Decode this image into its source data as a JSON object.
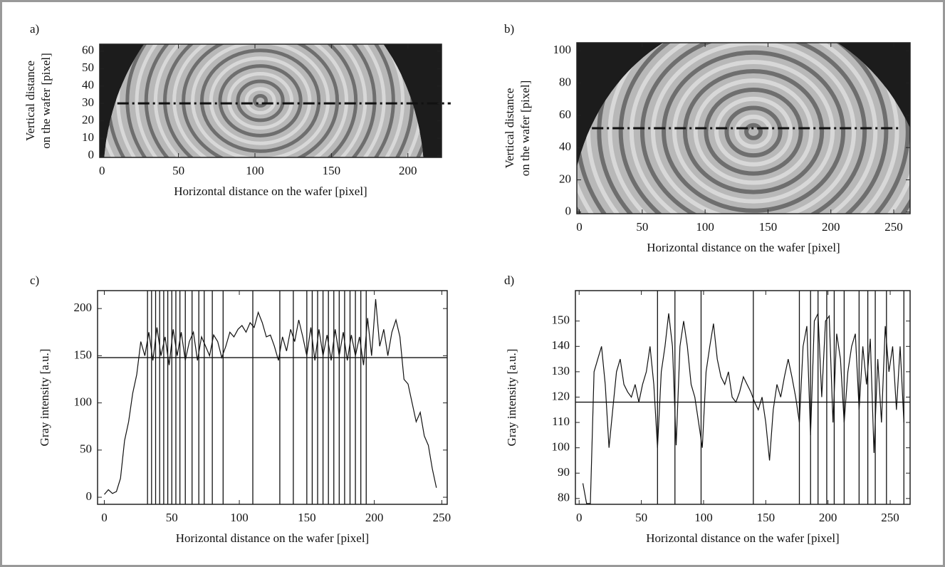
{
  "chart_data": [
    {
      "type": "image",
      "label": "a)",
      "xlabel": "Horizontal distance on the wafer [pixel]",
      "ylabel": [
        "Vertical distance",
        "on the wafer [pixel]"
      ],
      "xlim": [
        -1.5,
        222
      ],
      "ylim": [
        -1,
        64
      ],
      "xticks": [
        0,
        50,
        100,
        150,
        200
      ],
      "yticks": [
        0,
        10,
        20,
        30,
        40,
        50,
        60
      ],
      "profile_y": 30,
      "profile_x": [
        10,
        228
      ]
    },
    {
      "type": "image",
      "label": "b)",
      "xlabel": "Horizontal distance on the wafer [pixel]",
      "ylabel": [
        "Vertical distance",
        "on the wafer [pixel]"
      ],
      "xlim": [
        -2,
        263
      ],
      "ylim": [
        -1,
        105
      ],
      "xticks": [
        0,
        50,
        100,
        150,
        200,
        250
      ],
      "yticks": [
        0,
        20,
        40,
        60,
        80,
        100
      ],
      "profile_y": 52,
      "profile_x": [
        10,
        255
      ]
    },
    {
      "type": "line",
      "label": "c)",
      "xlabel": "Horizontal distance on the wafer [pixel]",
      "ylabel": [
        "Gray intensity [a.u.]"
      ],
      "xlim": [
        -5,
        254
      ],
      "ylim": [
        -7.5,
        219
      ],
      "xticks": [
        0,
        50,
        100,
        150,
        200,
        250
      ],
      "yticks": [
        0,
        50,
        100,
        150,
        200
      ],
      "threshold": 148,
      "crossings": [
        32,
        35,
        38,
        41,
        44,
        47,
        50,
        53,
        56,
        60,
        65,
        70,
        74,
        80,
        88,
        110,
        130,
        140,
        150,
        154,
        158,
        162,
        166,
        170,
        174,
        178,
        182,
        186,
        190,
        194
      ],
      "x": [
        0,
        3,
        6,
        9,
        12,
        15,
        18,
        21,
        24,
        27,
        30,
        33,
        36,
        39,
        42,
        45,
        48,
        51,
        54,
        57,
        60,
        63,
        66,
        69,
        72,
        75,
        78,
        81,
        84,
        87,
        90,
        93,
        96,
        99,
        102,
        105,
        108,
        111,
        114,
        117,
        120,
        123,
        126,
        129,
        132,
        135,
        138,
        141,
        144,
        147,
        150,
        153,
        156,
        159,
        162,
        165,
        168,
        171,
        174,
        177,
        180,
        183,
        186,
        189,
        192,
        195,
        198,
        201,
        204,
        207,
        210,
        213,
        216,
        219,
        222,
        225,
        228,
        231,
        234,
        237,
        240,
        243,
        246
      ],
      "values": [
        3,
        8,
        4,
        6,
        20,
        60,
        80,
        110,
        130,
        165,
        150,
        175,
        145,
        180,
        150,
        170,
        140,
        178,
        150,
        175,
        145,
        165,
        175,
        145,
        170,
        160,
        150,
        172,
        165,
        148,
        160,
        175,
        170,
        178,
        182,
        175,
        185,
        180,
        196,
        185,
        170,
        172,
        160,
        145,
        170,
        155,
        178,
        165,
        188,
        170,
        150,
        180,
        145,
        178,
        150,
        172,
        145,
        178,
        150,
        175,
        145,
        172,
        150,
        170,
        140,
        190,
        150,
        210,
        160,
        178,
        150,
        175,
        188,
        170,
        125,
        120,
        100,
        80,
        90,
        65,
        55,
        30,
        10
      ]
    },
    {
      "type": "line",
      "label": "d)",
      "xlabel": "Horizontal distance on the wafer [pixel]",
      "ylabel": [
        "Gray intensity [a.u.]"
      ],
      "xlim": [
        -3,
        266
      ],
      "ylim": [
        77.7,
        162
      ],
      "xticks": [
        0,
        50,
        100,
        150,
        200,
        250
      ],
      "yticks": [
        80,
        90,
        100,
        110,
        120,
        130,
        140,
        150
      ],
      "threshold": 118,
      "crossings": [
        63,
        77,
        98,
        140,
        177,
        186,
        192,
        199,
        205,
        213,
        225,
        232,
        238,
        247,
        261
      ],
      "x": [
        3,
        6,
        9,
        12,
        15,
        18,
        21,
        24,
        27,
        30,
        33,
        36,
        39,
        42,
        45,
        48,
        51,
        54,
        57,
        60,
        63,
        66,
        69,
        72,
        75,
        78,
        81,
        84,
        87,
        90,
        93,
        96,
        99,
        102,
        105,
        108,
        111,
        114,
        117,
        120,
        123,
        126,
        129,
        132,
        135,
        138,
        141,
        144,
        147,
        150,
        153,
        156,
        159,
        162,
        165,
        168,
        171,
        174,
        177,
        180,
        183,
        186,
        189,
        192,
        195,
        198,
        201,
        204,
        207,
        210,
        213,
        216,
        219,
        222,
        225,
        228,
        231,
        234,
        237,
        240,
        243,
        246,
        249,
        252,
        255,
        258,
        261
      ],
      "values": [
        86,
        78,
        78,
        130,
        135,
        140,
        125,
        100,
        115,
        130,
        135,
        125,
        122,
        120,
        125,
        118,
        125,
        130,
        140,
        125,
        100,
        130,
        140,
        153,
        140,
        101,
        140,
        150,
        140,
        125,
        120,
        110,
        100,
        130,
        140,
        149,
        135,
        128,
        125,
        130,
        120,
        118,
        122,
        128,
        125,
        122,
        118,
        115,
        120,
        110,
        95,
        115,
        125,
        120,
        128,
        135,
        128,
        120,
        110,
        140,
        148,
        105,
        150,
        153,
        120,
        150,
        152,
        110,
        145,
        135,
        110,
        130,
        140,
        145,
        115,
        140,
        125,
        143,
        98,
        135,
        110,
        148,
        130,
        140,
        115,
        140,
        110
      ]
    }
  ]
}
